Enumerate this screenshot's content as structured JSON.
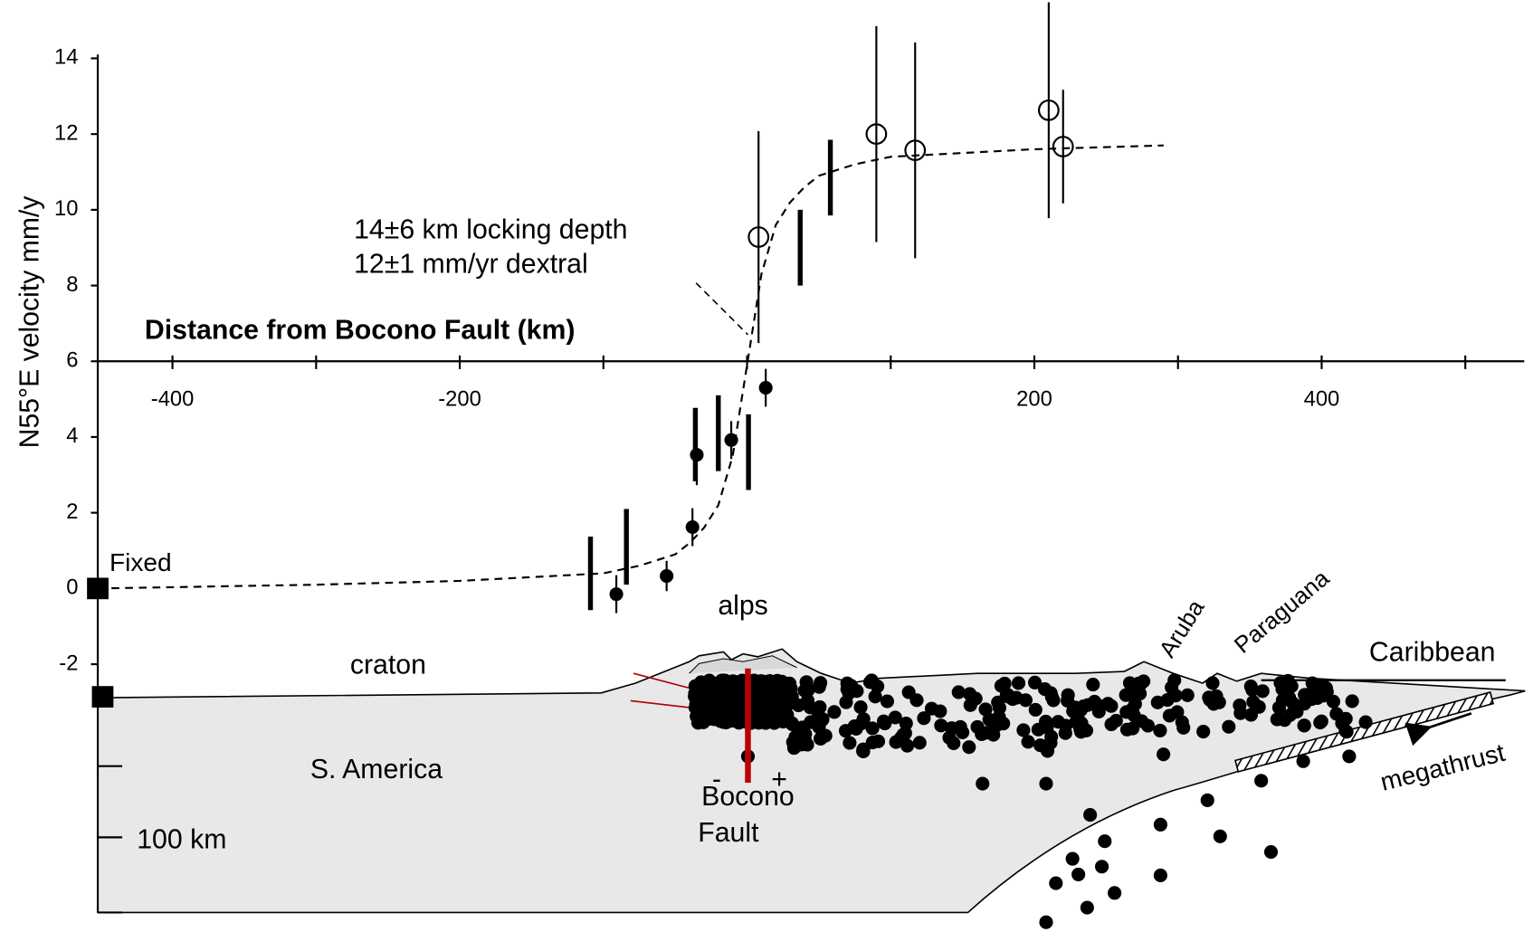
{
  "chart_data": {
    "type": "scatter",
    "y_label": "N55°E velocity mm/y",
    "x_label": "Distance from Bocono Fault (km)",
    "annotations": [
      "14±6 km locking depth",
      "12±1 mm/yr dextral"
    ],
    "xlim": [
      -452,
      541
    ],
    "ylim": [
      -2,
      14.1
    ],
    "xticks": [
      -400,
      -200,
      200,
      400
    ],
    "xminorticks": [
      -300,
      -100,
      0,
      100,
      300,
      500
    ],
    "yticks": [
      -2,
      0,
      2,
      4,
      6,
      8,
      10,
      12,
      14
    ],
    "x_axis_at": 6,
    "fixed": {
      "label": "Fixed",
      "x": -452,
      "value": 0
    },
    "circles": {
      "x": [
        8,
        90,
        117,
        210,
        220
      ],
      "values": [
        9.28,
        12.0,
        11.57,
        12.63,
        11.67
      ],
      "errors": [
        2.8,
        2.85,
        2.85,
        2.85,
        1.5
      ]
    },
    "dots": {
      "x": [
        -91,
        -56,
        -38,
        -35,
        -11,
        13
      ],
      "values": [
        -0.15,
        0.33,
        1.62,
        3.53,
        3.92,
        5.3
      ],
      "errors": [
        0.5,
        0.4,
        0.5,
        0.8,
        0.5,
        0.5
      ]
    },
    "bars": {
      "x": [
        -109,
        -84,
        -36,
        -20,
        1,
        37,
        58
      ],
      "values": [
        0.4,
        1.1,
        3.8,
        4.1,
        3.6,
        9.0,
        10.85
      ],
      "errors": [
        0.97,
        1.0,
        0.97,
        1.0,
        1.0,
        1.0,
        1.0
      ]
    },
    "model": {
      "x": [
        -452,
        -300,
        -200,
        -150,
        -100,
        -75,
        -50,
        -40,
        -30,
        -20,
        -10,
        0,
        10,
        20,
        30,
        40,
        50,
        75,
        100,
        150,
        200,
        290
      ],
      "values": [
        0.0,
        0.1,
        0.2,
        0.3,
        0.4,
        0.6,
        0.9,
        1.2,
        1.6,
        2.2,
        3.5,
        5.9,
        8.3,
        9.6,
        10.2,
        10.6,
        10.9,
        11.2,
        11.4,
        11.5,
        11.6,
        11.7
      ]
    }
  },
  "cross_section": {
    "craton": "craton",
    "alps": "alps",
    "continent": "S. America",
    "fault": [
      "Bocono",
      "Fault"
    ],
    "signs": [
      "-",
      "+"
    ],
    "islands": [
      "Aruba",
      "Paraguana"
    ],
    "sea": "Caribbean",
    "thrust": "megathrust",
    "scale": "100 km"
  }
}
